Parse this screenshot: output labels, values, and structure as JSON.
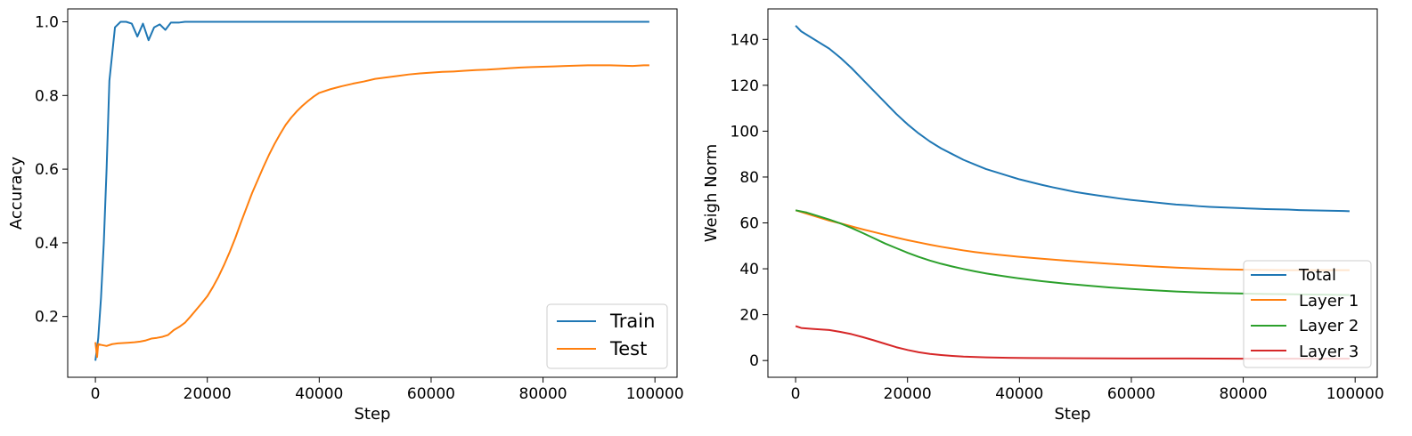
{
  "chart_data": [
    {
      "type": "line",
      "title": "",
      "xlabel": "Step",
      "ylabel": "Accuracy",
      "xlim": [
        -4950,
        103950
      ],
      "ylim": [
        0.035,
        1.035
      ],
      "xticks": [
        0,
        20000,
        40000,
        60000,
        80000,
        100000
      ],
      "yticks": [
        0.2,
        0.4,
        0.6,
        0.8,
        1.0
      ],
      "xtick_labels": [
        "0",
        "20000",
        "40000",
        "60000",
        "80000",
        "100000"
      ],
      "ytick_labels": [
        "0.2",
        "0.4",
        "0.6",
        "0.8",
        "1.0"
      ],
      "legend_position": "lower-right",
      "series": [
        {
          "name": "Train",
          "color": "#1f77b4",
          "points": [
            [
              0,
              0.08
            ],
            [
              500,
              0.14
            ],
            [
              1000,
              0.25
            ],
            [
              1500,
              0.4
            ],
            [
              2000,
              0.6
            ],
            [
              2500,
              0.84
            ],
            [
              3500,
              0.985
            ],
            [
              4500,
              1.0
            ],
            [
              5500,
              1.0
            ],
            [
              6500,
              0.995
            ],
            [
              7500,
              0.96
            ],
            [
              8500,
              0.995
            ],
            [
              9500,
              0.95
            ],
            [
              10500,
              0.985
            ],
            [
              11500,
              0.993
            ],
            [
              12500,
              0.978
            ],
            [
              13500,
              0.998
            ],
            [
              15000,
              0.998
            ],
            [
              16000,
              1.0
            ],
            [
              20000,
              1.0
            ],
            [
              40000,
              1.0
            ],
            [
              60000,
              1.0
            ],
            [
              80000,
              1.0
            ],
            [
              99000,
              1.0
            ]
          ]
        },
        {
          "name": "Test",
          "color": "#ff7f0e",
          "points": [
            [
              0,
              0.13
            ],
            [
              300,
              0.09
            ],
            [
              500,
              0.125
            ],
            [
              1000,
              0.123
            ],
            [
              2000,
              0.12
            ],
            [
              3000,
              0.125
            ],
            [
              4000,
              0.127
            ],
            [
              5000,
              0.128
            ],
            [
              6000,
              0.129
            ],
            [
              7000,
              0.13
            ],
            [
              8000,
              0.132
            ],
            [
              9000,
              0.135
            ],
            [
              10000,
              0.14
            ],
            [
              11000,
              0.142
            ],
            [
              12000,
              0.145
            ],
            [
              13000,
              0.15
            ],
            [
              14000,
              0.163
            ],
            [
              15000,
              0.172
            ],
            [
              16000,
              0.183
            ],
            [
              17000,
              0.2
            ],
            [
              18000,
              0.218
            ],
            [
              19000,
              0.236
            ],
            [
              20000,
              0.255
            ],
            [
              21000,
              0.28
            ],
            [
              22000,
              0.308
            ],
            [
              23000,
              0.34
            ],
            [
              24000,
              0.375
            ],
            [
              25000,
              0.413
            ],
            [
              26000,
              0.455
            ],
            [
              27000,
              0.495
            ],
            [
              28000,
              0.535
            ],
            [
              29000,
              0.57
            ],
            [
              30000,
              0.605
            ],
            [
              31000,
              0.638
            ],
            [
              32000,
              0.668
            ],
            [
              33000,
              0.695
            ],
            [
              34000,
              0.72
            ],
            [
              35000,
              0.74
            ],
            [
              36000,
              0.757
            ],
            [
              37000,
              0.772
            ],
            [
              38000,
              0.785
            ],
            [
              39000,
              0.797
            ],
            [
              40000,
              0.807
            ],
            [
              42000,
              0.817
            ],
            [
              44000,
              0.825
            ],
            [
              46000,
              0.832
            ],
            [
              48000,
              0.838
            ],
            [
              50000,
              0.845
            ],
            [
              52000,
              0.849
            ],
            [
              54000,
              0.853
            ],
            [
              56000,
              0.857
            ],
            [
              58000,
              0.86
            ],
            [
              60000,
              0.862
            ],
            [
              62000,
              0.864
            ],
            [
              64000,
              0.865
            ],
            [
              66000,
              0.867
            ],
            [
              68000,
              0.869
            ],
            [
              70000,
              0.87
            ],
            [
              72000,
              0.872
            ],
            [
              74000,
              0.874
            ],
            [
              76000,
              0.876
            ],
            [
              78000,
              0.877
            ],
            [
              80000,
              0.878
            ],
            [
              82000,
              0.879
            ],
            [
              84000,
              0.88
            ],
            [
              86000,
              0.881
            ],
            [
              88000,
              0.882
            ],
            [
              90000,
              0.882
            ],
            [
              92000,
              0.882
            ],
            [
              94000,
              0.881
            ],
            [
              96000,
              0.88
            ],
            [
              98000,
              0.882
            ],
            [
              99000,
              0.882
            ]
          ]
        }
      ]
    },
    {
      "type": "line",
      "title": "",
      "xlabel": "Step",
      "ylabel": "Weigh Norm",
      "xlim": [
        -4950,
        103950
      ],
      "ylim": [
        -7.3,
        153.3
      ],
      "xticks": [
        0,
        20000,
        40000,
        60000,
        80000,
        100000
      ],
      "yticks": [
        0,
        20,
        40,
        60,
        80,
        100,
        120,
        140
      ],
      "xtick_labels": [
        "0",
        "20000",
        "40000",
        "60000",
        "80000",
        "100000"
      ],
      "ytick_labels": [
        "0",
        "20",
        "40",
        "60",
        "80",
        "100",
        "120",
        "140"
      ],
      "legend_position": "lower-right",
      "series": [
        {
          "name": "Total",
          "color": "#1f77b4",
          "points": [
            [
              0,
              146
            ],
            [
              1000,
              143.5
            ],
            [
              2000,
              142
            ],
            [
              4000,
              139
            ],
            [
              6000,
              136
            ],
            [
              8000,
              132
            ],
            [
              10000,
              127.5
            ],
            [
              12000,
              122.5
            ],
            [
              14000,
              117.5
            ],
            [
              16000,
              112.5
            ],
            [
              18000,
              107.5
            ],
            [
              20000,
              103
            ],
            [
              22000,
              99
            ],
            [
              24000,
              95.5
            ],
            [
              26000,
              92.5
            ],
            [
              28000,
              90
            ],
            [
              30000,
              87.5
            ],
            [
              32000,
              85.5
            ],
            [
              34000,
              83.5
            ],
            [
              36000,
              82
            ],
            [
              38000,
              80.5
            ],
            [
              40000,
              79
            ],
            [
              42000,
              77.8
            ],
            [
              44000,
              76.6
            ],
            [
              46000,
              75.5
            ],
            [
              48000,
              74.5
            ],
            [
              50000,
              73.5
            ],
            [
              52000,
              72.7
            ],
            [
              54000,
              72
            ],
            [
              56000,
              71.3
            ],
            [
              58000,
              70.6
            ],
            [
              60000,
              70
            ],
            [
              62000,
              69.5
            ],
            [
              64000,
              69
            ],
            [
              66000,
              68.5
            ],
            [
              68000,
              68
            ],
            [
              70000,
              67.7
            ],
            [
              72000,
              67.3
            ],
            [
              74000,
              67
            ],
            [
              76000,
              66.8
            ],
            [
              78000,
              66.6
            ],
            [
              80000,
              66.4
            ],
            [
              82000,
              66.2
            ],
            [
              84000,
              66
            ],
            [
              86000,
              65.9
            ],
            [
              88000,
              65.8
            ],
            [
              90000,
              65.6
            ],
            [
              92000,
              65.5
            ],
            [
              94000,
              65.4
            ],
            [
              96000,
              65.3
            ],
            [
              98000,
              65.2
            ],
            [
              99000,
              65.1
            ]
          ]
        },
        {
          "name": "Layer 1",
          "color": "#ff7f0e",
          "points": [
            [
              0,
              65.5
            ],
            [
              2000,
              64
            ],
            [
              4000,
              62.5
            ],
            [
              6000,
              61
            ],
            [
              8000,
              59.8
            ],
            [
              10000,
              58.5
            ],
            [
              12000,
              57.2
            ],
            [
              14000,
              56
            ],
            [
              16000,
              54.8
            ],
            [
              18000,
              53.6
            ],
            [
              20000,
              52.5
            ],
            [
              22000,
              51.5
            ],
            [
              24000,
              50.5
            ],
            [
              26000,
              49.6
            ],
            [
              28000,
              48.8
            ],
            [
              30000,
              48
            ],
            [
              32000,
              47.3
            ],
            [
              34000,
              46.7
            ],
            [
              36000,
              46.2
            ],
            [
              38000,
              45.7
            ],
            [
              40000,
              45.2
            ],
            [
              44000,
              44.4
            ],
            [
              48000,
              43.6
            ],
            [
              52000,
              42.9
            ],
            [
              56000,
              42.2
            ],
            [
              60000,
              41.6
            ],
            [
              64000,
              41
            ],
            [
              68000,
              40.5
            ],
            [
              72000,
              40.1
            ],
            [
              76000,
              39.8
            ],
            [
              80000,
              39.6
            ],
            [
              84000,
              39.5
            ],
            [
              88000,
              39.4
            ],
            [
              92000,
              39.4
            ],
            [
              96000,
              39.4
            ],
            [
              99000,
              39.4
            ]
          ]
        },
        {
          "name": "Layer 2",
          "color": "#2ca02c",
          "points": [
            [
              0,
              65.5
            ],
            [
              2000,
              64.5
            ],
            [
              4000,
              63
            ],
            [
              6000,
              61.5
            ],
            [
              8000,
              59.8
            ],
            [
              10000,
              57.8
            ],
            [
              12000,
              55.6
            ],
            [
              14000,
              53.3
            ],
            [
              16000,
              51
            ],
            [
              18000,
              49
            ],
            [
              20000,
              47
            ],
            [
              22000,
              45.2
            ],
            [
              24000,
              43.6
            ],
            [
              26000,
              42.2
            ],
            [
              28000,
              41
            ],
            [
              30000,
              39.9
            ],
            [
              32000,
              38.9
            ],
            [
              34000,
              38
            ],
            [
              36000,
              37.2
            ],
            [
              38000,
              36.5
            ],
            [
              40000,
              35.8
            ],
            [
              44000,
              34.6
            ],
            [
              48000,
              33.6
            ],
            [
              52000,
              32.7
            ],
            [
              56000,
              31.9
            ],
            [
              60000,
              31.2
            ],
            [
              64000,
              30.6
            ],
            [
              68000,
              30.1
            ],
            [
              72000,
              29.7
            ],
            [
              76000,
              29.4
            ],
            [
              80000,
              29.2
            ],
            [
              84000,
              29
            ],
            [
              88000,
              28.9
            ],
            [
              92000,
              28.8
            ],
            [
              96000,
              28.7
            ],
            [
              99000,
              28.6
            ]
          ]
        },
        {
          "name": "Layer 3",
          "color": "#d62728",
          "points": [
            [
              0,
              15
            ],
            [
              1000,
              14.2
            ],
            [
              3000,
              13.8
            ],
            [
              6000,
              13.3
            ],
            [
              8000,
              12.5
            ],
            [
              10000,
              11.5
            ],
            [
              12000,
              10.2
            ],
            [
              14000,
              8.8
            ],
            [
              16000,
              7.3
            ],
            [
              18000,
              5.8
            ],
            [
              20000,
              4.6
            ],
            [
              22000,
              3.6
            ],
            [
              24000,
              2.9
            ],
            [
              26000,
              2.4
            ],
            [
              28000,
              2
            ],
            [
              30000,
              1.7
            ],
            [
              34000,
              1.4
            ],
            [
              38000,
              1.2
            ],
            [
              42000,
              1.1
            ],
            [
              50000,
              1.0
            ],
            [
              60000,
              0.9
            ],
            [
              70000,
              0.9
            ],
            [
              80000,
              0.8
            ],
            [
              90000,
              0.8
            ],
            [
              99000,
              0.8
            ]
          ]
        }
      ]
    }
  ]
}
